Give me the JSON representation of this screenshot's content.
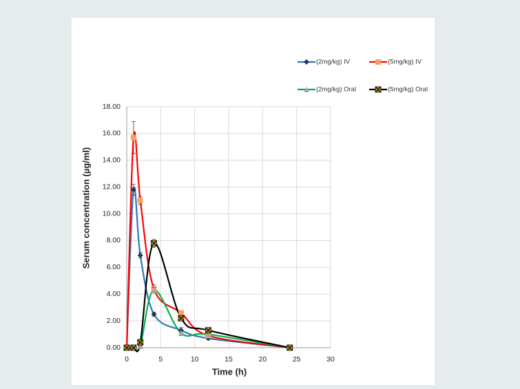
{
  "chart_data": {
    "type": "line",
    "x_label": "Time (h)",
    "y_label": "Serum concentration (µg/ml)",
    "x": [
      0,
      1,
      2,
      4,
      8,
      12,
      24
    ],
    "xlim": [
      0,
      30
    ],
    "xticks": [
      0,
      5,
      10,
      15,
      20,
      25,
      30
    ],
    "ylim": [
      0,
      18
    ],
    "yticks": [
      {
        "value": 0,
        "label": "0.00"
      },
      {
        "value": 2,
        "label": "2.00"
      },
      {
        "value": 4,
        "label": "4.00"
      },
      {
        "value": 6,
        "label": "6.00"
      },
      {
        "value": 8,
        "label": "8.00"
      },
      {
        "value": 10,
        "label": "10.00"
      },
      {
        "value": 12,
        "label": "12.00"
      },
      {
        "value": 14,
        "label": "14.00"
      },
      {
        "value": 16,
        "label": "16.00"
      },
      {
        "value": 18,
        "label": "18.00"
      }
    ],
    "grid": true,
    "smooth": true,
    "legend": "top-right",
    "series": [
      {
        "name": "(2mg/kg) IV",
        "color": "#2e75b6",
        "marker": "diamond",
        "marker_color": "#1f3864",
        "values": [
          0,
          11.8,
          6.9,
          2.5,
          1.3,
          0.7,
          0
        ],
        "errors": [
          0,
          0.4,
          0.2,
          0.15,
          0.2,
          0.1,
          0
        ]
      },
      {
        "name": "(5mg/kg) IV",
        "color": "#ff0000",
        "marker": "square",
        "marker_color": "#f4a460",
        "values": [
          0,
          15.7,
          11.0,
          4.4,
          2.6,
          0.9,
          0
        ],
        "errors": [
          0,
          1.2,
          0.3,
          0.3,
          0.15,
          0.1,
          0
        ]
      },
      {
        "name": "(2mg/kg) Oral",
        "color": "#00b050",
        "marker": "triangle",
        "marker_color": "#a5a5a5",
        "values": [
          0,
          0,
          0.1,
          4.3,
          1.1,
          1.0,
          0
        ],
        "errors": [
          0,
          0,
          0.05,
          0.2,
          0.2,
          0.1,
          0
        ]
      },
      {
        "name": "(5mg/kg) Oral",
        "color": "#000000",
        "marker": "x",
        "marker_color": "#c9a227",
        "values": [
          0,
          0,
          0.4,
          7.8,
          2.2,
          1.3,
          0
        ],
        "errors": [
          0,
          0,
          0.1,
          0.3,
          0.2,
          0.1,
          0
        ]
      }
    ]
  }
}
